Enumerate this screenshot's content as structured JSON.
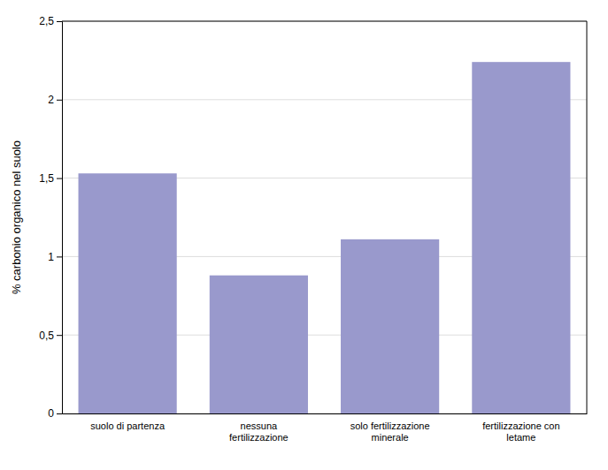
{
  "chart_data": {
    "type": "bar",
    "categories": [
      "suolo di partenza",
      "nessuna\nfertilizzazione",
      "solo fertilizzazione\nminerale",
      "fertilizzazione con\nletame"
    ],
    "values": [
      1.53,
      0.88,
      1.11,
      2.24
    ],
    "color": "#9999cc",
    "ylabel": "% carbonio organico nel suolo",
    "ylim": [
      0,
      2.5
    ],
    "yticks": [
      0,
      {
        "value": 0.5,
        "label": "0,5"
      },
      1,
      {
        "value": 1.5,
        "label": "1,5"
      },
      2,
      {
        "value": 2.5,
        "label": "2,5"
      }
    ],
    "grid": true
  }
}
